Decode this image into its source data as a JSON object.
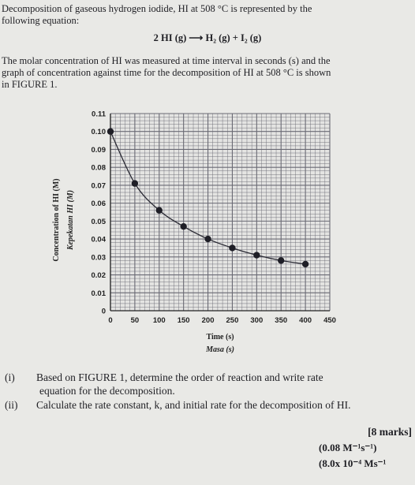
{
  "intro": {
    "line1": "Decomposition of gaseous hydrogen iodide, HI at 508 °C is represented by the",
    "line2": "following equation:"
  },
  "equation": "2 HI (g) ⟶ H₂ (g) + I₂ (g)",
  "para": {
    "line1": "The molar concentration of HI was measured at time interval in seconds (s) and the",
    "line2": "graph of concentration against time for the decomposition of HI at 508 °C is shown",
    "line3": "in FIGURE 1."
  },
  "chart_data": {
    "type": "scatter",
    "xlabel": "Time (s)",
    "xlabel_alt": "Masa (s)",
    "ylabel": "Concentration of HI (M)",
    "ylabel_alt": "Kepekatan HI (M)",
    "xlim": [
      0,
      450
    ],
    "ylim": [
      0,
      0.11
    ],
    "x_ticks": [
      "0",
      "50",
      "100",
      "150",
      "200",
      "250",
      "300",
      "350",
      "400",
      "450"
    ],
    "y_ticks": [
      "0",
      "0.01",
      "0.02",
      "0.03",
      "0.04",
      "0.05",
      "0.06",
      "0.07",
      "0.08",
      "0.09",
      "0.10",
      "0.11"
    ],
    "grid": true,
    "series": [
      {
        "x": [
          0,
          50,
          100,
          150,
          200,
          250,
          300,
          350,
          400
        ],
        "y": [
          0.1,
          0.071,
          0.056,
          0.047,
          0.04,
          0.035,
          0.031,
          0.028,
          0.026
        ]
      }
    ],
    "colors": {
      "grid": "#6a6a74",
      "points": "#1e1e26",
      "curve": "#2a2a34"
    }
  },
  "questions": {
    "q1_num": "(i)",
    "q1_line1": "Based on FIGURE 1, determine the order of reaction and write rate",
    "q1_line2": "equation for the decomposition.",
    "q2_num": "(ii)",
    "q2_text": "Calculate the rate constant, k, and initial rate for the decomposition of HI."
  },
  "marks": "[8 marks]",
  "answers": {
    "a1": "(0.08 M⁻¹s⁻¹)",
    "a2": "(8.0x 10⁻⁴ Ms⁻¹"
  }
}
